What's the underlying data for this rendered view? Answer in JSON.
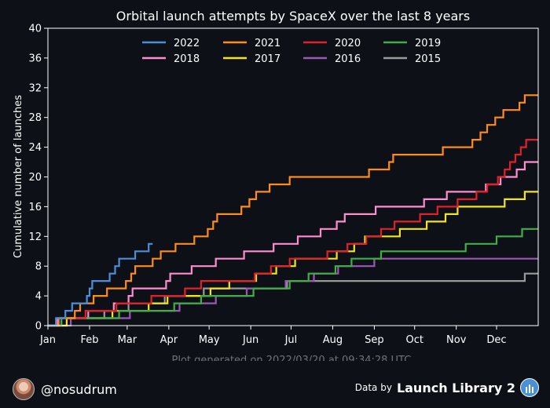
{
  "chart_data": {
    "type": "line",
    "step": true,
    "title": "Orbital launch attempts by SpaceX over the last 8 years",
    "xlabel": "",
    "ylabel": "Cumulative number of launches",
    "xlim": [
      0,
      365
    ],
    "ylim": [
      0,
      40
    ],
    "yticks": [
      0,
      4,
      8,
      12,
      16,
      20,
      24,
      28,
      32,
      36,
      40
    ],
    "xticks": [
      {
        "day": 0,
        "label": "Jan"
      },
      {
        "day": 31,
        "label": "Feb"
      },
      {
        "day": 59,
        "label": "Mar"
      },
      {
        "day": 90,
        "label": "Apr"
      },
      {
        "day": 120,
        "label": "May"
      },
      {
        "day": 151,
        "label": "Jun"
      },
      {
        "day": 181,
        "label": "Jul"
      },
      {
        "day": 212,
        "label": "Aug"
      },
      {
        "day": 243,
        "label": "Sep"
      },
      {
        "day": 273,
        "label": "Oct"
      },
      {
        "day": 304,
        "label": "Nov"
      },
      {
        "day": 334,
        "label": "Dec"
      }
    ],
    "grid": false,
    "legend_position": "top",
    "series": [
      {
        "name": "2022",
        "color": "#4a90d9",
        "end": 78,
        "points": [
          [
            6,
            1
          ],
          [
            13,
            2
          ],
          [
            18,
            3
          ],
          [
            29,
            4
          ],
          [
            31,
            5
          ],
          [
            33,
            6
          ],
          [
            46,
            7
          ],
          [
            50,
            8
          ],
          [
            53,
            9
          ],
          [
            65,
            10
          ],
          [
            75,
            11
          ]
        ]
      },
      {
        "name": "2021",
        "color": "#ff8c1a",
        "end": 365,
        "points": [
          [
            8,
            1
          ],
          [
            20,
            2
          ],
          [
            24,
            3
          ],
          [
            34,
            4
          ],
          [
            44,
            5
          ],
          [
            58,
            6
          ],
          [
            62,
            7
          ],
          [
            65,
            8
          ],
          [
            78,
            9
          ],
          [
            84,
            10
          ],
          [
            95,
            11
          ],
          [
            109,
            12
          ],
          [
            119,
            13
          ],
          [
            123,
            14
          ],
          [
            126,
            15
          ],
          [
            144,
            16
          ],
          [
            150,
            17
          ],
          [
            155,
            18
          ],
          [
            165,
            19
          ],
          [
            180,
            20
          ],
          [
            239,
            21
          ],
          [
            254,
            22
          ],
          [
            257,
            23
          ],
          [
            294,
            24
          ],
          [
            316,
            25
          ],
          [
            322,
            26
          ],
          [
            327,
            27
          ],
          [
            333,
            28
          ],
          [
            339,
            29
          ],
          [
            351,
            30
          ],
          [
            355,
            31
          ]
        ]
      },
      {
        "name": "2020",
        "color": "#e0202a",
        "end": 365,
        "points": [
          [
            6,
            1
          ],
          [
            28,
            2
          ],
          [
            51,
            3
          ],
          [
            77,
            4
          ],
          [
            102,
            5
          ],
          [
            114,
            6
          ],
          [
            154,
            7
          ],
          [
            166,
            8
          ],
          [
            180,
            9
          ],
          [
            208,
            10
          ],
          [
            223,
            11
          ],
          [
            237,
            12
          ],
          [
            248,
            13
          ],
          [
            258,
            14
          ],
          [
            277,
            15
          ],
          [
            290,
            16
          ],
          [
            305,
            17
          ],
          [
            319,
            18
          ],
          [
            327,
            19
          ],
          [
            335,
            20
          ],
          [
            340,
            21
          ],
          [
            344,
            22
          ],
          [
            348,
            23
          ],
          [
            352,
            24
          ],
          [
            356,
            25
          ]
        ]
      },
      {
        "name": "2019",
        "color": "#3fae49",
        "end": 365,
        "points": [
          [
            10,
            1
          ],
          [
            53,
            2
          ],
          [
            94,
            3
          ],
          [
            114,
            4
          ],
          [
            153,
            5
          ],
          [
            180,
            6
          ],
          [
            194,
            7
          ],
          [
            214,
            8
          ],
          [
            226,
            9
          ],
          [
            248,
            10
          ],
          [
            311,
            11
          ],
          [
            334,
            12
          ],
          [
            353,
            13
          ]
        ]
      },
      {
        "name": "2018",
        "color": "#ff8ccf",
        "end": 365,
        "points": [
          [
            7,
            1
          ],
          [
            30,
            2
          ],
          [
            49,
            3
          ],
          [
            60,
            4
          ],
          [
            63,
            5
          ],
          [
            88,
            6
          ],
          [
            91,
            7
          ],
          [
            107,
            8
          ],
          [
            125,
            9
          ],
          [
            146,
            10
          ],
          [
            168,
            11
          ],
          [
            186,
            12
          ],
          [
            203,
            13
          ],
          [
            215,
            14
          ],
          [
            221,
            15
          ],
          [
            244,
            16
          ],
          [
            280,
            17
          ],
          [
            297,
            18
          ],
          [
            326,
            19
          ],
          [
            337,
            20
          ],
          [
            349,
            21
          ],
          [
            355,
            22
          ]
        ]
      },
      {
        "name": "2017",
        "color": "#f2e51b",
        "end": 365,
        "points": [
          [
            14,
            1
          ],
          [
            48,
            2
          ],
          [
            75,
            3
          ],
          [
            89,
            4
          ],
          [
            121,
            5
          ],
          [
            135,
            6
          ],
          [
            155,
            7
          ],
          [
            170,
            8
          ],
          [
            184,
            9
          ],
          [
            215,
            10
          ],
          [
            228,
            11
          ],
          [
            236,
            12
          ],
          [
            262,
            13
          ],
          [
            282,
            14
          ],
          [
            296,
            15
          ],
          [
            305,
            16
          ],
          [
            340,
            17
          ],
          [
            355,
            18
          ]
        ]
      },
      {
        "name": "2016",
        "color": "#9b59b6",
        "end": 365,
        "points": [
          [
            17,
            1
          ],
          [
            61,
            2
          ],
          [
            98,
            3
          ],
          [
            125,
            4
          ],
          [
            148,
            5
          ],
          [
            177,
            6
          ],
          [
            198,
            7
          ],
          [
            216,
            8
          ],
          [
            243,
            9
          ]
        ]
      },
      {
        "name": "2015",
        "color": "#9a9a9a",
        "end": 365,
        "points": [
          [
            10,
            1
          ],
          [
            42,
            2
          ],
          [
            60,
            3
          ],
          [
            87,
            4
          ],
          [
            116,
            5
          ],
          [
            178,
            6
          ],
          [
            355,
            7
          ]
        ]
      }
    ]
  },
  "footer": {
    "generated": "Plot generated on 2022/03/20 at 09:34:28 UTC.",
    "handle": "@nosudrum",
    "data_by": "Data by",
    "source": "Launch Library 2"
  }
}
